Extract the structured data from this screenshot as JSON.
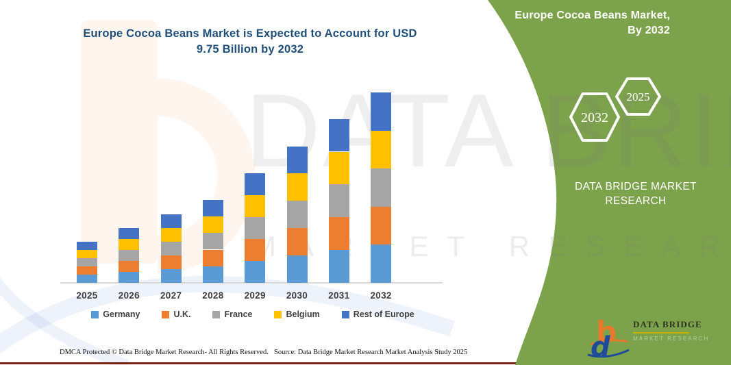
{
  "page": {
    "title_line1": "Europe Cocoa Beans Market is Expected to Account for USD",
    "title_line2": "9.75 Billion by 2032",
    "footer_dmca": "DMCA Protected © Data Bridge Market Research- All Rights Reserved.",
    "footer_source": "Source: Data Bridge Market Research Market Analysis Study 2025",
    "accent_green": "#7CA24B",
    "title_color": "#1F4E79",
    "bottom_line_color": "#7E1F14"
  },
  "watermark": {
    "line1": "DATA BRIDGE",
    "line2": "MARKET RESEARCH"
  },
  "sidebar": {
    "header_line1": "Europe Cocoa Beans Market,",
    "header_line2": "By 2032",
    "hexagons": [
      {
        "label": "2032"
      },
      {
        "label": "2025"
      }
    ],
    "brand_line1": "DATA BRIDGE MARKET",
    "brand_line2": "RESEARCH",
    "logo": {
      "wordmark": "DATA BRIDGE",
      "subtext": "MARKET RESEARCH",
      "b_color": "#E8792B",
      "d_color": "#1E4C9A",
      "rule_color": "#C9B500"
    }
  },
  "chart_data": {
    "type": "bar",
    "stacked": true,
    "title": "Europe Cocoa Beans Market is Expected to Account for USD 9.75 Billion by 2032",
    "unit": "USD Billion",
    "xlabel": "",
    "ylabel": "",
    "categories": [
      "2025",
      "2026",
      "2027",
      "2028",
      "2029",
      "2030",
      "2031",
      "2032"
    ],
    "totals": [
      2.1,
      2.8,
      3.5,
      4.25,
      5.6,
      7.0,
      8.4,
      9.75
    ],
    "series": [
      {
        "name": "Germany",
        "color": "#5B9BD5",
        "values": [
          0.42,
          0.56,
          0.7,
          0.85,
          1.12,
          1.4,
          1.68,
          1.95
        ]
      },
      {
        "name": "U.K.",
        "color": "#ED7D31",
        "values": [
          0.42,
          0.56,
          0.7,
          0.85,
          1.12,
          1.4,
          1.68,
          1.95
        ]
      },
      {
        "name": "France",
        "color": "#A5A5A5",
        "values": [
          0.42,
          0.56,
          0.7,
          0.85,
          1.12,
          1.4,
          1.68,
          1.95
        ]
      },
      {
        "name": "Belgium",
        "color": "#FFC000",
        "values": [
          0.42,
          0.56,
          0.7,
          0.85,
          1.12,
          1.4,
          1.68,
          1.95
        ]
      },
      {
        "name": "Rest of Europe",
        "color": "#4472C4",
        "values": [
          0.42,
          0.56,
          0.7,
          0.85,
          1.12,
          1.4,
          1.68,
          1.95
        ]
      }
    ],
    "ylim": [
      0,
      10
    ],
    "gridlines": false,
    "legend_position": "bottom"
  }
}
